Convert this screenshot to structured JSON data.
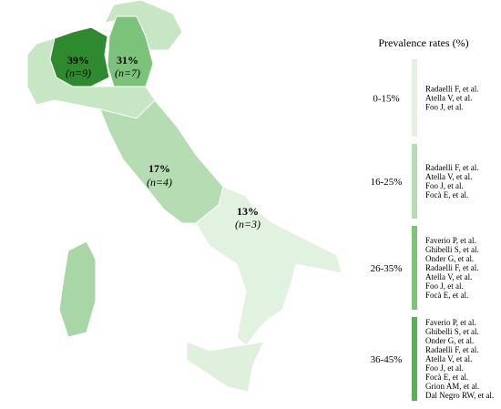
{
  "regions": [
    {
      "value": "39%",
      "n": "(n=9)"
    },
    {
      "value": "31%",
      "n": "(n=7)"
    },
    {
      "value": "17%",
      "n": "(n=4)"
    },
    {
      "value": "13%",
      "n": "(n=3)"
    }
  ],
  "legend": {
    "title": "Prevalence rates (%)",
    "bins": [
      {
        "label": "0-15%",
        "refs": [
          "Radaelli F, et al.",
          "Atella V, et al.",
          "Foo J, et al."
        ]
      },
      {
        "label": "16-25%",
        "refs": [
          "Radaelli F, et al.",
          "Atella V, et al.",
          "Foo J, et al.",
          "Focà E, et al."
        ]
      },
      {
        "label": "26-35%",
        "refs": [
          "Faverio P, et al.",
          "Ghibelli S, et al.",
          "Onder G, et al.",
          "Radaelli F, et al.",
          "Atella V, et al.",
          "Foo J, et al.",
          "Focà E, et al."
        ]
      },
      {
        "label": "36-45%",
        "refs": [
          "Faverio P, et al.",
          "Ghibelli S, et al.",
          "Onder G, et al.",
          "Radaelli F, et al.",
          "Atella V, et al.",
          "Foo J, et al.",
          "Focà E, et al.",
          "Grion AM, et al.",
          "Dal Negro RW, et al."
        ]
      }
    ]
  }
}
